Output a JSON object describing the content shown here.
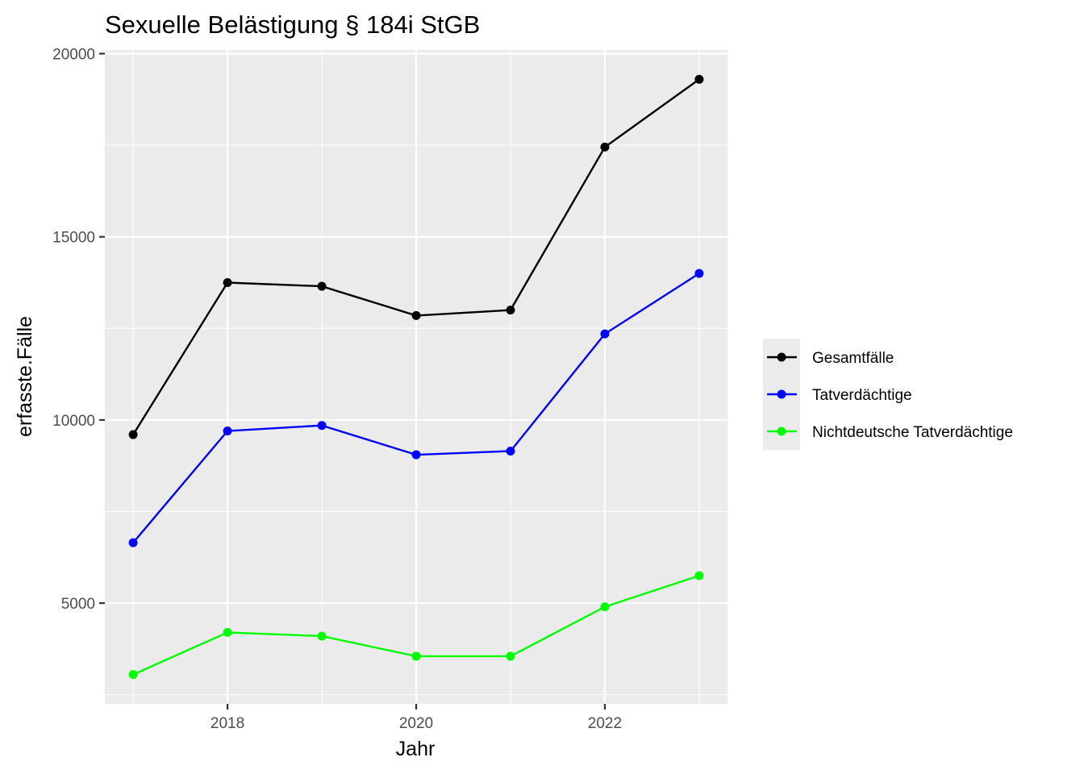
{
  "chart_data": {
    "type": "line",
    "title": "Sexuelle Belästigung § 184i StGB",
    "xlabel": "Jahr",
    "ylabel": "erfasste.Fälle",
    "x": [
      2017,
      2018,
      2019,
      2020,
      2021,
      2022,
      2023
    ],
    "xlim": [
      2016.7,
      2023.3
    ],
    "ylim": [
      2250,
      20100
    ],
    "x_ticks": [
      2018,
      2020,
      2022
    ],
    "y_ticks": [
      5000,
      10000,
      15000,
      20000
    ],
    "x_tick_labels": [
      "2018",
      "2020",
      "2022"
    ],
    "y_tick_labels": [
      "5000",
      "10000",
      "15000",
      "20000"
    ],
    "grid": true,
    "legend_position": "right",
    "series": [
      {
        "name": "Gesamtfälle",
        "color": "#000000",
        "values": [
          9600,
          13750,
          13650,
          12850,
          13000,
          17450,
          19300
        ]
      },
      {
        "name": "Tatverdächtige",
        "color": "#0000ff",
        "values": [
          6650,
          9700,
          9850,
          9050,
          9150,
          12350,
          14000
        ]
      },
      {
        "name": "Nichtdeutsche Tatverdächtige",
        "color": "#00ff00",
        "values": [
          3050,
          4200,
          4100,
          3550,
          3550,
          4900,
          5750
        ]
      }
    ]
  }
}
